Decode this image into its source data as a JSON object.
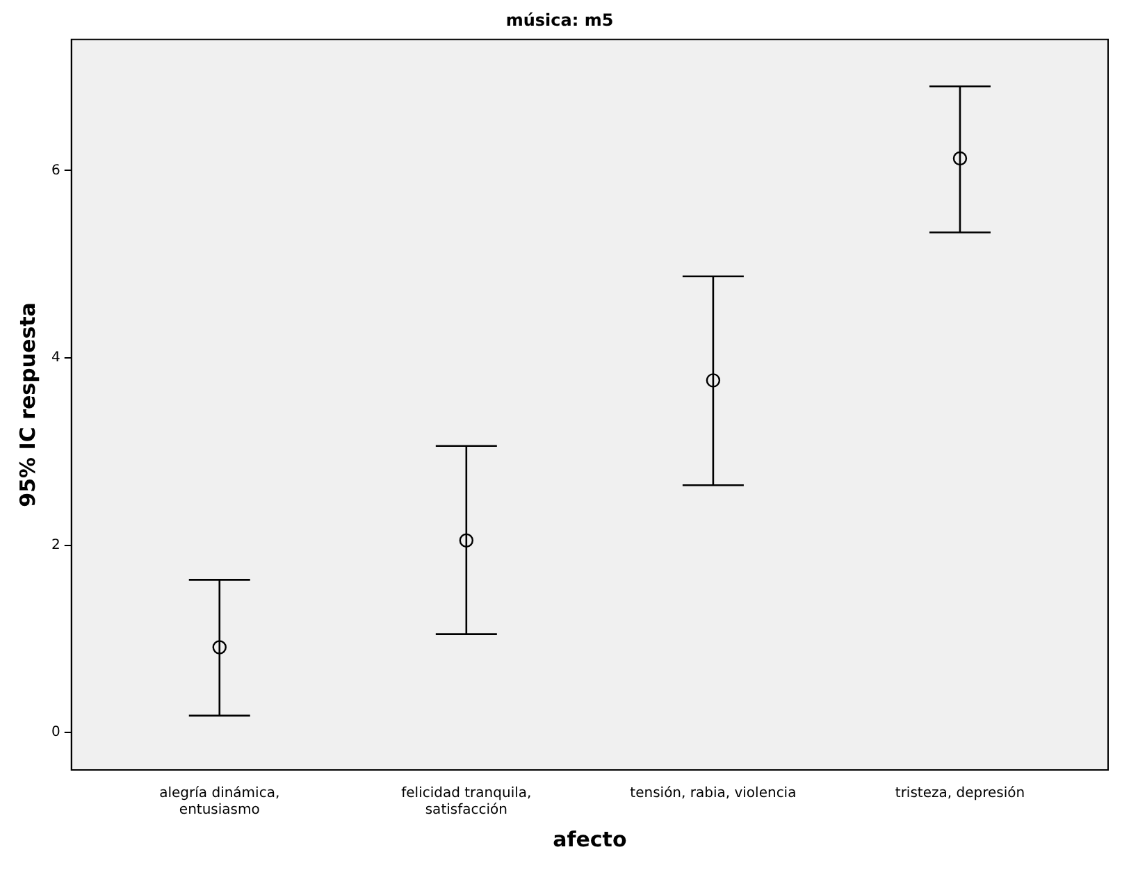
{
  "chart_data": {
    "type": "scatter",
    "title": "música: m5",
    "xlabel": "afecto",
    "ylabel": "95% IC respuesta",
    "categories": [
      "alegría dinámica,\nentusiasmo",
      "felicidad tranquila,\nsatisfacción",
      "tensión, rabia, violencia",
      "tristeza, depresión"
    ],
    "values": [
      0.91,
      2.05,
      3.76,
      6.13
    ],
    "errors": [
      [
        0.18,
        1.63
      ],
      [
        1.05,
        3.06
      ],
      [
        2.64,
        4.87
      ],
      [
        5.34,
        6.9
      ]
    ],
    "color": "#000000",
    "marker": "circle",
    "grid": false,
    "legend": false,
    "ylim": [
      -0.4,
      7.4
    ],
    "yticks": [
      0,
      2,
      4,
      6
    ]
  }
}
